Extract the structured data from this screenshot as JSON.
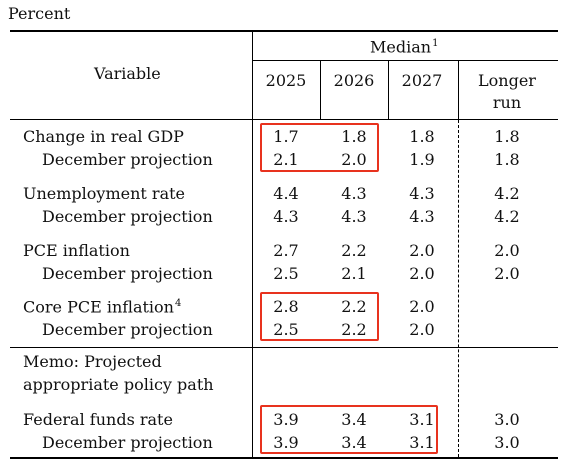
{
  "unit_label": "Percent",
  "header": {
    "variable": "Variable",
    "median": "Median",
    "median_note": "1",
    "years": [
      "2025",
      "2026",
      "2027"
    ],
    "longer_run_line1": "Longer",
    "longer_run_line2": "run"
  },
  "rows": [
    {
      "label": "Change in real GDP",
      "values": [
        "1.7",
        "1.8",
        "1.8",
        "1.8"
      ]
    },
    {
      "label": "December projection",
      "values": [
        "2.1",
        "2.0",
        "1.9",
        "1.8"
      ]
    },
    {
      "label": "Unemployment rate",
      "values": [
        "4.4",
        "4.3",
        "4.3",
        "4.2"
      ]
    },
    {
      "label": "December projection",
      "values": [
        "4.3",
        "4.3",
        "4.3",
        "4.2"
      ]
    },
    {
      "label": "PCE inflation",
      "values": [
        "2.7",
        "2.2",
        "2.0",
        "2.0"
      ]
    },
    {
      "label": "December projection",
      "values": [
        "2.5",
        "2.1",
        "2.0",
        "2.0"
      ]
    },
    {
      "label": "Core PCE inflation",
      "note": "4",
      "values": [
        "2.8",
        "2.2",
        "2.0",
        ""
      ]
    },
    {
      "label": "December projection",
      "values": [
        "2.5",
        "2.2",
        "2.0",
        ""
      ]
    },
    {
      "label": "Federal funds rate",
      "values": [
        "3.9",
        "3.4",
        "3.1",
        "3.0"
      ]
    },
    {
      "label": "December projection",
      "values": [
        "3.9",
        "3.4",
        "3.1",
        "3.0"
      ]
    }
  ],
  "memo": {
    "line1": "Memo: Projected",
    "line2": "appropriate policy path"
  },
  "highlight_color": "#e8321e"
}
